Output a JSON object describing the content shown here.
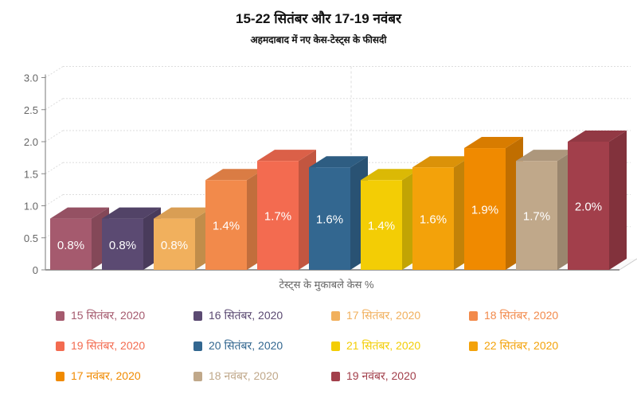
{
  "chart_data": {
    "type": "bar",
    "title": "15-22 सितंबर और 17-19 नवंबर",
    "subtitle": "अहमदाबाद में नए केस-टेस्ट्स के फीसदी",
    "xlabel": "टेस्ट्स के मुकाबले केस %",
    "ylabel": "",
    "ylim": [
      0,
      3.0
    ],
    "yticks": [
      "0",
      "0.5",
      "1.0",
      "1.5",
      "2.0",
      "2.5",
      "3.0"
    ],
    "grid": true,
    "legend_position": "bottom",
    "series": [
      {
        "name": "15 सितंबर, 2020",
        "value": 0.8,
        "label": "0.8%",
        "color": "#a55a6e"
      },
      {
        "name": "16 सितंबर, 2020",
        "value": 0.8,
        "label": "0.8%",
        "color": "#5b4a72"
      },
      {
        "name": "17 सितंबर, 2020",
        "value": 0.8,
        "label": "0.8%",
        "color": "#f1b05d"
      },
      {
        "name": "18 सितंबर, 2020",
        "value": 1.4,
        "label": "1.4%",
        "color": "#f28a4b"
      },
      {
        "name": "19 सितंबर, 2020",
        "value": 1.7,
        "label": "1.7%",
        "color": "#f36b50"
      },
      {
        "name": "20 सितंबर, 2020",
        "value": 1.6,
        "label": "1.6%",
        "color": "#336790"
      },
      {
        "name": "21 सितंबर, 2020",
        "value": 1.4,
        "label": "1.4%",
        "color": "#f3cd05"
      },
      {
        "name": "22 सितंबर, 2020",
        "value": 1.6,
        "label": "1.6%",
        "color": "#f3a20a"
      },
      {
        "name": "17 नवंबर, 2020",
        "value": 1.9,
        "label": "1.9%",
        "color": "#f08a00"
      },
      {
        "name": "18 नवंबर, 2020",
        "value": 1.7,
        "label": "1.7%",
        "color": "#c0a88a"
      },
      {
        "name": "19 नवंबर, 2020",
        "value": 2.0,
        "label": "2.0%",
        "color": "#a23f4b"
      }
    ]
  }
}
